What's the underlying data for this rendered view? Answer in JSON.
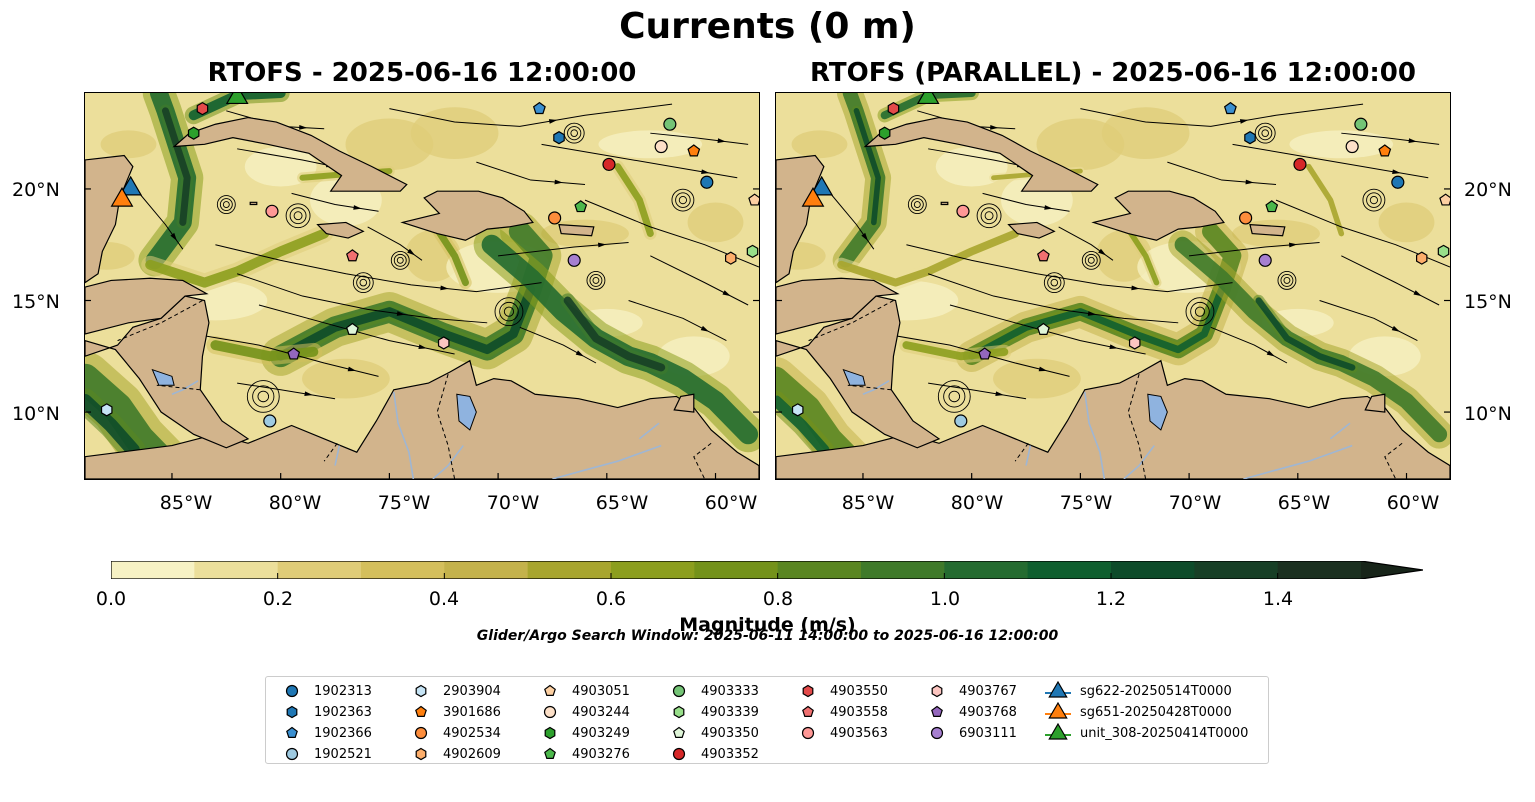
{
  "figure": {
    "title": "Currents (0 m)",
    "panels": [
      {
        "title": "RTOFS - 2025-06-16 12:00:00"
      },
      {
        "title": "RTOFS (PARALLEL) - 2025-06-16 12:00:00"
      }
    ],
    "map_extent": {
      "lon": [
        -89.0,
        -58.0
      ],
      "lat": [
        7.0,
        24.3
      ]
    },
    "x_ticks": [
      "85°W",
      "80°W",
      "75°W",
      "70°W",
      "65°W",
      "60°W"
    ],
    "x_tick_values": [
      -85,
      -80,
      -75,
      -70,
      -65,
      -60
    ],
    "y_ticks": [
      "20°N",
      "15°N",
      "10°N"
    ],
    "y_tick_values": [
      20,
      15,
      10
    ],
    "colors": {
      "land": "#d2b48c",
      "lake": "#8fb3df",
      "coast": "#000000"
    }
  },
  "colorbar": {
    "label": "Magnitude (m/s)",
    "ticks": [
      "0.0",
      "0.2",
      "0.4",
      "0.6",
      "0.8",
      "1.0",
      "1.2",
      "1.4"
    ],
    "tick_values": [
      0.0,
      0.2,
      0.4,
      0.6,
      0.8,
      1.0,
      1.2,
      1.4
    ],
    "range": [
      0.0,
      1.5
    ],
    "extend": "max",
    "colors": [
      "#f7f2c4",
      "#ecdf9b",
      "#dfcc78",
      "#d4bf5c",
      "#c4b24b",
      "#a8a52e",
      "#8c9e1e",
      "#74921a",
      "#5a8621",
      "#3f7a2a",
      "#246b30",
      "#0f5f2f",
      "#0d4b2a",
      "#173f26",
      "#1b3020",
      "#18251a"
    ]
  },
  "search_window": "Glider/Argo Search Window: 2025-06-11 14:00:00 to 2025-06-16 12:00:00",
  "legend": {
    "columns": [
      [
        {
          "label": "1902313",
          "marker": "circle",
          "color": "#1f77b4"
        },
        {
          "label": "1902363",
          "marker": "hexagon",
          "color": "#1f77b4"
        },
        {
          "label": "1902366",
          "marker": "pentagon",
          "color": "#3a8fd0"
        },
        {
          "label": "1902521",
          "marker": "circle",
          "color": "#9ecae1"
        }
      ],
      [
        {
          "label": "2903904",
          "marker": "hexagon",
          "color": "#c6e4f5"
        },
        {
          "label": "3901686",
          "marker": "pentagon",
          "color": "#ff7f0e"
        },
        {
          "label": "4902534",
          "marker": "circle",
          "color": "#fd8d3c"
        },
        {
          "label": "4902609",
          "marker": "hexagon",
          "color": "#fdae6b"
        }
      ],
      [
        {
          "label": "4903051",
          "marker": "pentagon",
          "color": "#fdd0a2"
        },
        {
          "label": "4903244",
          "marker": "circle",
          "color": "#fde0c8"
        },
        {
          "label": "4903249",
          "marker": "hexagon",
          "color": "#2ca02c"
        },
        {
          "label": "4903276",
          "marker": "pentagon",
          "color": "#4cb84c"
        }
      ],
      [
        {
          "label": "4903333",
          "marker": "circle",
          "color": "#74c476"
        },
        {
          "label": "4903339",
          "marker": "hexagon",
          "color": "#98df8a"
        },
        {
          "label": "4903350",
          "marker": "pentagon",
          "color": "#dff5d8"
        },
        {
          "label": "4903352",
          "marker": "circle",
          "color": "#d62728"
        }
      ],
      [
        {
          "label": "4903550",
          "marker": "hexagon",
          "color": "#e34a4a"
        },
        {
          "label": "4903558",
          "marker": "pentagon",
          "color": "#f07070"
        },
        {
          "label": "4903563",
          "marker": "circle",
          "color": "#ff9896"
        }
      ],
      [
        {
          "label": "4903767",
          "marker": "hexagon",
          "color": "#fcc5c0"
        },
        {
          "label": "4903768",
          "marker": "pentagon",
          "color": "#9467bd"
        },
        {
          "label": "6903111",
          "marker": "circle",
          "color": "#a67fd0"
        }
      ],
      [
        {
          "label": "sg622-20250514T0000",
          "marker": "triangle",
          "color": "#1f77b4"
        },
        {
          "label": "sg651-20250428T0000",
          "marker": "triangle",
          "color": "#ff7f0e"
        },
        {
          "label": "unit_308-20250414T0000",
          "marker": "triangle",
          "color": "#2ca02c"
        }
      ]
    ]
  },
  "floats": [
    {
      "id": "1902313",
      "lon": -60.4,
      "lat": 20.3
    },
    {
      "id": "1902363",
      "lon": -67.2,
      "lat": 22.3
    },
    {
      "id": "1902366",
      "lon": -68.1,
      "lat": 23.6
    },
    {
      "id": "1902521",
      "lon": -80.5,
      "lat": 9.6
    },
    {
      "id": "2903904",
      "lon": -88.0,
      "lat": 10.1
    },
    {
      "id": "3901686",
      "lon": -61.0,
      "lat": 21.7
    },
    {
      "id": "4902534",
      "lon": -67.4,
      "lat": 18.7
    },
    {
      "id": "4902609",
      "lon": -59.3,
      "lat": 16.9
    },
    {
      "id": "4903051",
      "lon": -58.2,
      "lat": 19.5
    },
    {
      "id": "4903244",
      "lon": -62.5,
      "lat": 21.9
    },
    {
      "id": "4903249",
      "lon": -84.0,
      "lat": 22.5
    },
    {
      "id": "4903276",
      "lon": -66.2,
      "lat": 19.2
    },
    {
      "id": "4903333",
      "lon": -62.1,
      "lat": 22.9
    },
    {
      "id": "4903339",
      "lon": -58.3,
      "lat": 17.2
    },
    {
      "id": "4903350",
      "lon": -76.7,
      "lat": 13.7
    },
    {
      "id": "4903352",
      "lon": -64.9,
      "lat": 21.1
    },
    {
      "id": "4903550",
      "lon": -83.6,
      "lat": 23.6
    },
    {
      "id": "4903558",
      "lon": -76.7,
      "lat": 17.0
    },
    {
      "id": "4903563",
      "lon": -80.4,
      "lat": 19.0
    },
    {
      "id": "4903767",
      "lon": -72.5,
      "lat": 13.1
    },
    {
      "id": "4903768",
      "lon": -79.4,
      "lat": 12.6
    },
    {
      "id": "6903111",
      "lon": -66.5,
      "lat": 16.8
    }
  ],
  "gliders": [
    {
      "id": "sg622-20250514T0000",
      "lon": -86.9,
      "lat": 20.0
    },
    {
      "id": "sg651-20250428T0000",
      "lon": -87.3,
      "lat": 19.5
    },
    {
      "id": "unit_308-20250414T0000",
      "lon": -82.0,
      "lat": 24.1
    }
  ]
}
